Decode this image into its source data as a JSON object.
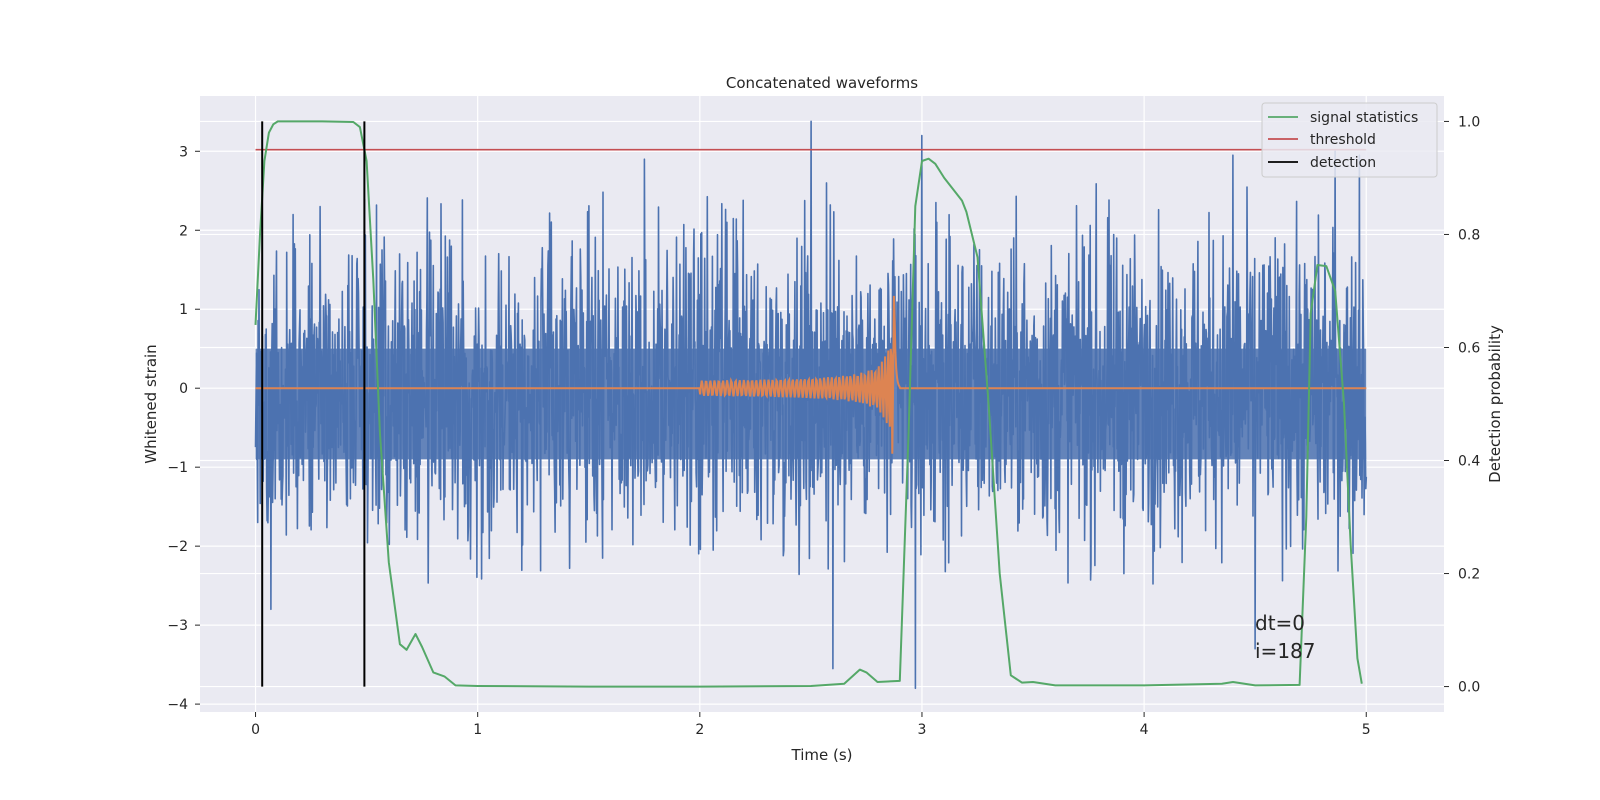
{
  "chart_data": {
    "type": "line",
    "title": "Concatenated waveforms",
    "xlabel": "Time (s)",
    "ylabel": "Whitened strain",
    "y2label": "Detection probability",
    "xlim": [
      -0.25,
      5.35
    ],
    "ylim": [
      -4.1,
      3.7
    ],
    "y2lim": [
      -0.045,
      1.045
    ],
    "xticks": [
      0,
      1,
      2,
      3,
      4,
      5
    ],
    "yticks": [
      -4,
      -3,
      -2,
      -1,
      0,
      1,
      2,
      3
    ],
    "y2ticks": [
      0.0,
      0.2,
      0.4,
      0.6,
      0.8,
      1.0
    ],
    "y2ticklabels": [
      "0.0",
      "0.2",
      "0.4",
      "0.6",
      "0.8",
      "1.0"
    ],
    "grid": true,
    "legend_position": "top-right",
    "colors": {
      "background": "#eaeaf2",
      "noise": "#4c72b0",
      "injection": "#dd8452",
      "signal_statistics": "#55a868",
      "threshold": "#c44e52",
      "detection": "#000000"
    },
    "series": [
      {
        "name": "signal statistics",
        "axis": "right",
        "x": [
          0.0,
          0.02,
          0.04,
          0.06,
          0.08,
          0.1,
          0.15,
          0.3,
          0.44,
          0.47,
          0.5,
          0.53,
          0.56,
          0.6,
          0.65,
          0.68,
          0.72,
          0.75,
          0.8,
          0.85,
          0.9,
          1.0,
          1.5,
          2.0,
          2.5,
          2.65,
          2.72,
          2.75,
          2.8,
          2.9,
          2.94,
          2.97,
          3.0,
          3.03,
          3.06,
          3.1,
          3.18,
          3.2,
          3.25,
          3.3,
          3.35,
          3.4,
          3.45,
          3.5,
          3.6,
          4.0,
          4.35,
          4.4,
          4.5,
          4.7,
          4.73,
          4.75,
          4.78,
          4.82,
          4.86,
          4.9,
          4.93,
          4.96,
          4.98
        ],
        "values": [
          0.64,
          0.8,
          0.93,
          0.98,
          0.995,
          1.0,
          1.0,
          1.0,
          0.999,
          0.99,
          0.93,
          0.72,
          0.45,
          0.22,
          0.075,
          0.065,
          0.093,
          0.07,
          0.025,
          0.018,
          0.002,
          0.001,
          0.0,
          0.0,
          0.001,
          0.005,
          0.03,
          0.025,
          0.008,
          0.01,
          0.45,
          0.85,
          0.93,
          0.934,
          0.925,
          0.9,
          0.86,
          0.84,
          0.76,
          0.5,
          0.2,
          0.02,
          0.007,
          0.008,
          0.002,
          0.002,
          0.005,
          0.008,
          0.002,
          0.003,
          0.3,
          0.66,
          0.746,
          0.744,
          0.7,
          0.5,
          0.25,
          0.05,
          0.005
        ]
      },
      {
        "name": "threshold",
        "axis": "right",
        "x": [
          0.0,
          5.0
        ],
        "values": [
          0.95,
          0.95
        ]
      },
      {
        "name": "detection",
        "axis": "right",
        "x": [
          0.03,
          0.49
        ],
        "values": [
          1.0,
          1.0
        ]
      }
    ],
    "noise_trace": {
      "x_range": [
        0.0,
        5.0
      ],
      "typical_range": [
        -2.6,
        2.6
      ],
      "core_range": [
        -0.9,
        0.5
      ],
      "spikes": [
        {
          "x": 0.01,
          "y": -1.7
        },
        {
          "x": 0.07,
          "y": -2.8
        },
        {
          "x": 0.17,
          "y": 2.2
        },
        {
          "x": 0.29,
          "y": 2.3
        },
        {
          "x": 1.75,
          "y": 2.9
        },
        {
          "x": 2.5,
          "y": 3.38
        },
        {
          "x": 2.57,
          "y": 2.6
        },
        {
          "x": 2.6,
          "y": -3.55
        },
        {
          "x": 2.97,
          "y": -3.8
        },
        {
          "x": 3.0,
          "y": 3.2
        },
        {
          "x": 4.4,
          "y": 2.95
        },
        {
          "x": 4.5,
          "y": -3.3
        },
        {
          "x": 4.86,
          "y": 3.0
        },
        {
          "x": 4.97,
          "y": 2.95
        }
      ]
    },
    "injection_trace": {
      "x_range": [
        2.0,
        2.9
      ],
      "peak_time": 2.875,
      "peak_amplitude": 1.3
    },
    "annotations": [
      "dt=0",
      "i=187"
    ]
  }
}
